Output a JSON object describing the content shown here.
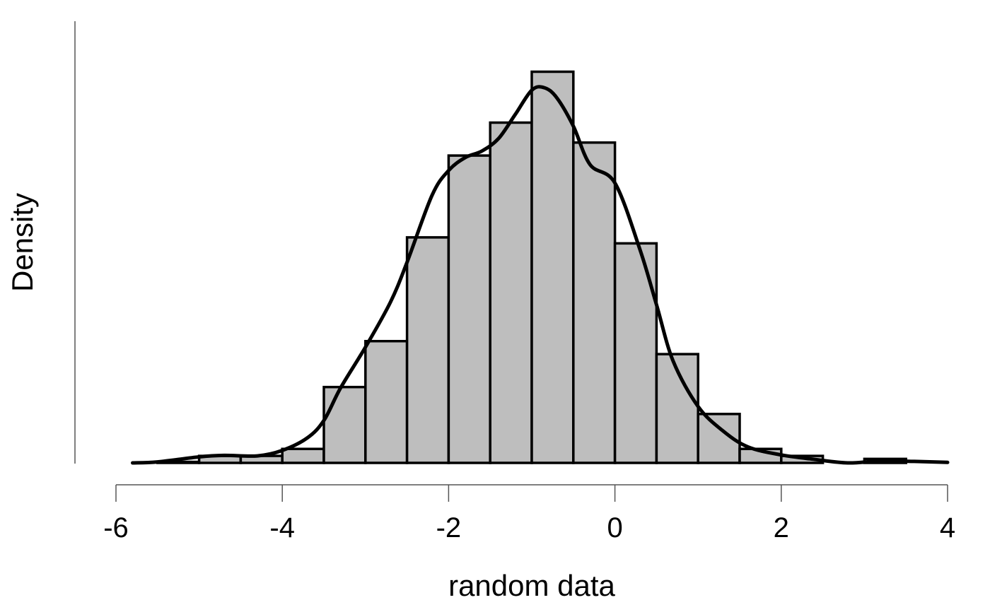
{
  "chart_data": {
    "type": "bar",
    "title": "",
    "xlabel": "random data",
    "ylabel": "Density",
    "xlim": [
      -6,
      4
    ],
    "x_ticks": [
      "-6",
      "-4",
      "-2",
      "0",
      "2",
      "4"
    ],
    "y_ticks_shown": false,
    "grid": false,
    "bins": [
      {
        "x0": -5.5,
        "x1": -5.0,
        "density": 0.002
      },
      {
        "x0": -5.0,
        "x1": -4.5,
        "density": 0.014
      },
      {
        "x0": -4.5,
        "x1": -4.0,
        "density": 0.014
      },
      {
        "x0": -4.0,
        "x1": -3.5,
        "density": 0.028
      },
      {
        "x0": -3.5,
        "x1": -3.0,
        "density": 0.152
      },
      {
        "x0": -3.0,
        "x1": -2.5,
        "density": 0.244
      },
      {
        "x0": -2.5,
        "x1": -2.0,
        "density": 0.452
      },
      {
        "x0": -2.0,
        "x1": -1.5,
        "density": 0.616
      },
      {
        "x0": -1.5,
        "x1": -1.0,
        "density": 0.682
      },
      {
        "x0": -1.0,
        "x1": -0.5,
        "density": 0.784
      },
      {
        "x0": -0.5,
        "x1": 0.0,
        "density": 0.642
      },
      {
        "x0": 0.0,
        "x1": 0.5,
        "density": 0.44
      },
      {
        "x0": 0.5,
        "x1": 1.0,
        "density": 0.218
      },
      {
        "x0": 1.0,
        "x1": 1.5,
        "density": 0.098
      },
      {
        "x0": 1.5,
        "x1": 2.0,
        "density": 0.028
      },
      {
        "x0": 2.0,
        "x1": 2.5,
        "density": 0.014
      },
      {
        "x0": 2.5,
        "x1": 3.0,
        "density": 0.0
      },
      {
        "x0": 3.0,
        "x1": 3.5,
        "density": 0.008
      }
    ],
    "density_curve": {
      "x": [
        -5.8,
        -5.5,
        -5.0,
        -4.7,
        -4.3,
        -4.0,
        -3.7,
        -3.5,
        -3.3,
        -3.0,
        -2.7,
        -2.5,
        -2.2,
        -2.0,
        -1.8,
        -1.6,
        -1.4,
        -1.2,
        -1.0,
        -0.85,
        -0.7,
        -0.5,
        -0.3,
        0.0,
        0.3,
        0.5,
        0.7,
        1.0,
        1.3,
        1.6,
        2.0,
        2.4,
        2.8,
        3.2,
        3.6,
        4.0
      ],
      "y": [
        0.0,
        0.002,
        0.012,
        0.015,
        0.014,
        0.025,
        0.05,
        0.085,
        0.15,
        0.232,
        0.322,
        0.402,
        0.536,
        0.586,
        0.612,
        0.625,
        0.65,
        0.698,
        0.747,
        0.752,
        0.732,
        0.675,
        0.598,
        0.561,
        0.428,
        0.317,
        0.204,
        0.113,
        0.064,
        0.032,
        0.016,
        0.007,
        0.0,
        0.004,
        0.003,
        0.001
      ]
    },
    "ylim": [
      0,
      0.8
    ]
  }
}
